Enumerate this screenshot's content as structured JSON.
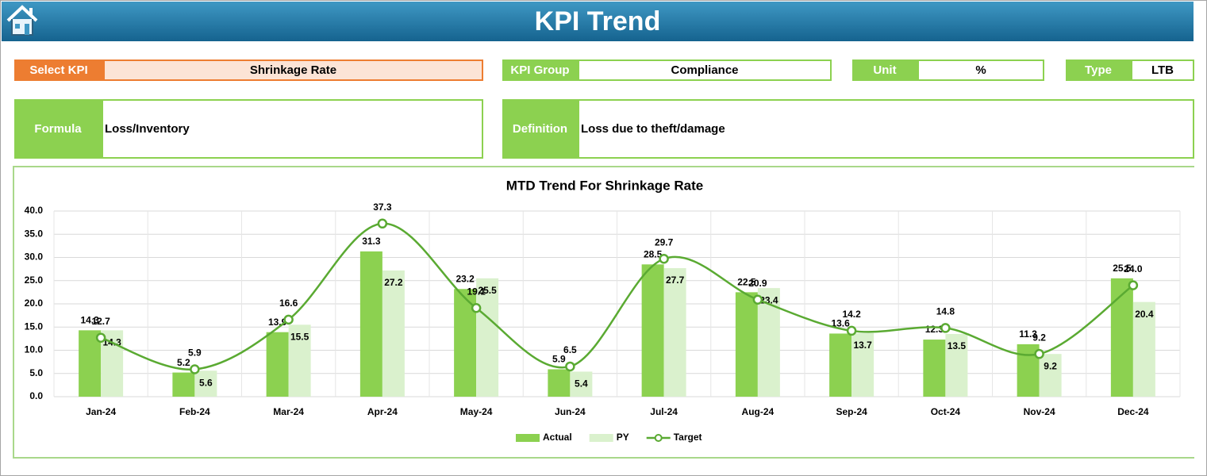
{
  "header": {
    "title": "KPI Trend"
  },
  "fields": {
    "select_kpi": {
      "label": "Select KPI",
      "value": "Shrinkage Rate"
    },
    "kpi_group": {
      "label": "KPI Group",
      "value": "Compliance"
    },
    "unit": {
      "label": "Unit",
      "value": "%"
    },
    "type": {
      "label": "Type",
      "value": "LTB"
    },
    "formula": {
      "label": "Formula",
      "value": "Loss/Inventory"
    },
    "definition": {
      "label": "Definition",
      "value": "Loss due to theft/damage"
    }
  },
  "chart_data": {
    "type": "combo",
    "title": "MTD Trend For Shrinkage Rate",
    "categories": [
      "Jan-24",
      "Feb-24",
      "Mar-24",
      "Apr-24",
      "May-24",
      "Jun-24",
      "Jul-24",
      "Aug-24",
      "Sep-24",
      "Oct-24",
      "Nov-24",
      "Dec-24"
    ],
    "series": [
      {
        "name": "Actual",
        "type": "bar",
        "color": "#8cd150",
        "values": [
          14.3,
          5.2,
          13.9,
          31.3,
          23.2,
          5.9,
          28.5,
          22.5,
          13.6,
          12.3,
          11.3,
          25.5
        ],
        "value_labels": [
          "14.3",
          "5.2",
          "13.9",
          "31.3",
          "23.2",
          "5.9",
          "28.5",
          "22.5",
          "13.6",
          "12.3",
          "11.3",
          "25.5"
        ]
      },
      {
        "name": "PY",
        "type": "bar",
        "color": "#daf1cd",
        "values": [
          14.3,
          5.6,
          15.5,
          27.2,
          25.5,
          5.4,
          27.7,
          23.4,
          13.7,
          13.5,
          9.2,
          20.4
        ],
        "value_labels": [
          "14.3",
          "5.6",
          "15.5",
          "27.2",
          "25.5",
          "5.4",
          "27.7",
          "23.4",
          "13.7",
          "13.5",
          "9.2",
          "20.4"
        ]
      },
      {
        "name": "Target",
        "type": "line",
        "color": "#5aaa32",
        "values": [
          12.7,
          5.9,
          16.6,
          37.3,
          19.1,
          6.5,
          29.7,
          20.9,
          14.2,
          14.8,
          9.2,
          24.0
        ],
        "value_labels": [
          "12.7",
          "5.9",
          "16.6",
          "37.3",
          "19.1",
          "6.5",
          "29.7",
          "20.9",
          "14.2",
          "14.8",
          "9.2",
          "24.0"
        ]
      }
    ],
    "ylim": [
      0,
      40
    ],
    "yticks": [
      {
        "value": 0,
        "label": "0.0"
      },
      {
        "value": 5,
        "label": "5.0"
      },
      {
        "value": 10,
        "label": "10.0"
      },
      {
        "value": 15,
        "label": "15.0"
      },
      {
        "value": 20,
        "label": "20.0"
      },
      {
        "value": 25,
        "label": "25.0"
      },
      {
        "value": 30,
        "label": "30.0"
      },
      {
        "value": 35,
        "label": "35.0"
      },
      {
        "value": 40,
        "label": "40.0"
      }
    ],
    "grid": true,
    "legend": "bottom"
  }
}
